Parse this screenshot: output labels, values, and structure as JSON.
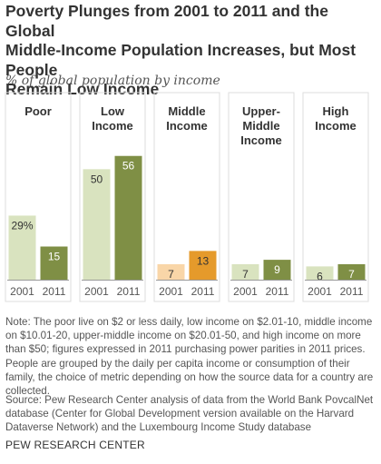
{
  "title_lines": [
    "Poverty Plunges from 2001 to 2011 and the Global",
    "Middle-Income Population Increases, but Most People",
    "Remain Low Income"
  ],
  "subtitle": "% of global population by income",
  "chart_data": {
    "type": "bar",
    "title": "Poverty Plunges from 2001 to 2011 and the Global Middle-Income Population Increases, but Most People Remain Low Income",
    "ylabel": "% of global population by income",
    "ylim": [
      0,
      60
    ],
    "years": [
      "2001",
      "2011"
    ],
    "groups": [
      {
        "name": "Poor",
        "label_lines": [
          "Poor"
        ],
        "values": [
          29,
          15
        ],
        "value_labels": [
          "29%",
          "15"
        ],
        "colors": [
          "#d9e3bf",
          "#7f8f45"
        ]
      },
      {
        "name": "Low Income",
        "label_lines": [
          "Low",
          "Income"
        ],
        "values": [
          50,
          56
        ],
        "value_labels": [
          "50",
          "56"
        ],
        "colors": [
          "#d9e3bf",
          "#7f8f45"
        ]
      },
      {
        "name": "Middle Income",
        "label_lines": [
          "Middle",
          "Income"
        ],
        "values": [
          7,
          13
        ],
        "value_labels": [
          "7",
          "13"
        ],
        "colors": [
          "#f9d6a8",
          "#e59a2b"
        ]
      },
      {
        "name": "Upper-Middle Income",
        "label_lines": [
          "Upper-",
          "Middle",
          "Income"
        ],
        "values": [
          7,
          9
        ],
        "value_labels": [
          "7",
          "9"
        ],
        "colors": [
          "#d9e3bf",
          "#7f8f45"
        ]
      },
      {
        "name": "High Income",
        "label_lines": [
          "High",
          "Income"
        ],
        "values": [
          6,
          7
        ],
        "value_labels": [
          "6",
          "7"
        ],
        "colors": [
          "#d9e3bf",
          "#7f8f45"
        ]
      }
    ],
    "grid": false,
    "legend": "none"
  },
  "colors": {
    "panel_border": "#dddddd",
    "axis_line": "#999999",
    "label_dark": "#333333",
    "label_light": "#ffffff"
  },
  "note": "Note: The poor live on $2 or less daily, low income on $2.01-10, middle income on $10.01-20, upper-middle income on $20.01-50, and high income on more than $50; figures expressed in 2011 purchasing power parities in 2011 prices. People are grouped by the daily per capita income or consumption of their family, the choice of metric depending on how the source data for a country are collected.",
  "source": "Source: Pew Research Center analysis of data from the World Bank PovcalNet database (Center for Global Development version available on the Harvard Dataverse Network) and the Luxembourg Income Study database",
  "brand": "PEW RESEARCH CENTER"
}
